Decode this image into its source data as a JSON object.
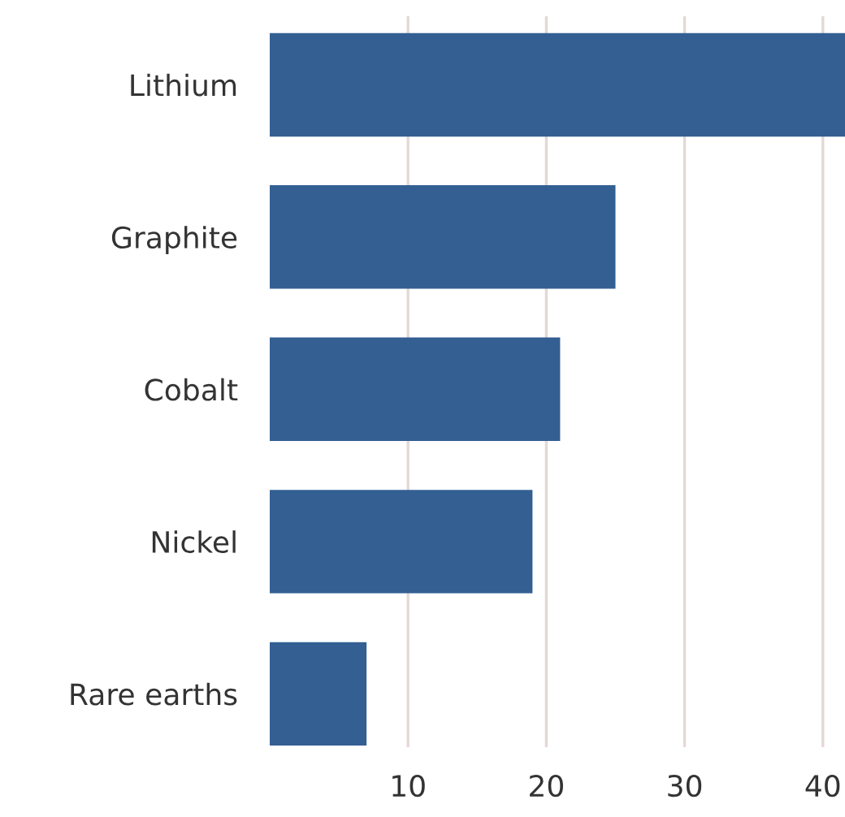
{
  "chart_data": {
    "type": "bar",
    "orientation": "horizontal",
    "categories": [
      "Lithium",
      "Graphite",
      "Cobalt",
      "Nickel",
      "Rare earths"
    ],
    "values": [
      41.6,
      25,
      21,
      19,
      7
    ],
    "color": "#335f93",
    "xlim": [
      0,
      41.6
    ],
    "xticks": [
      10,
      20,
      30,
      40
    ],
    "grid": "x"
  }
}
